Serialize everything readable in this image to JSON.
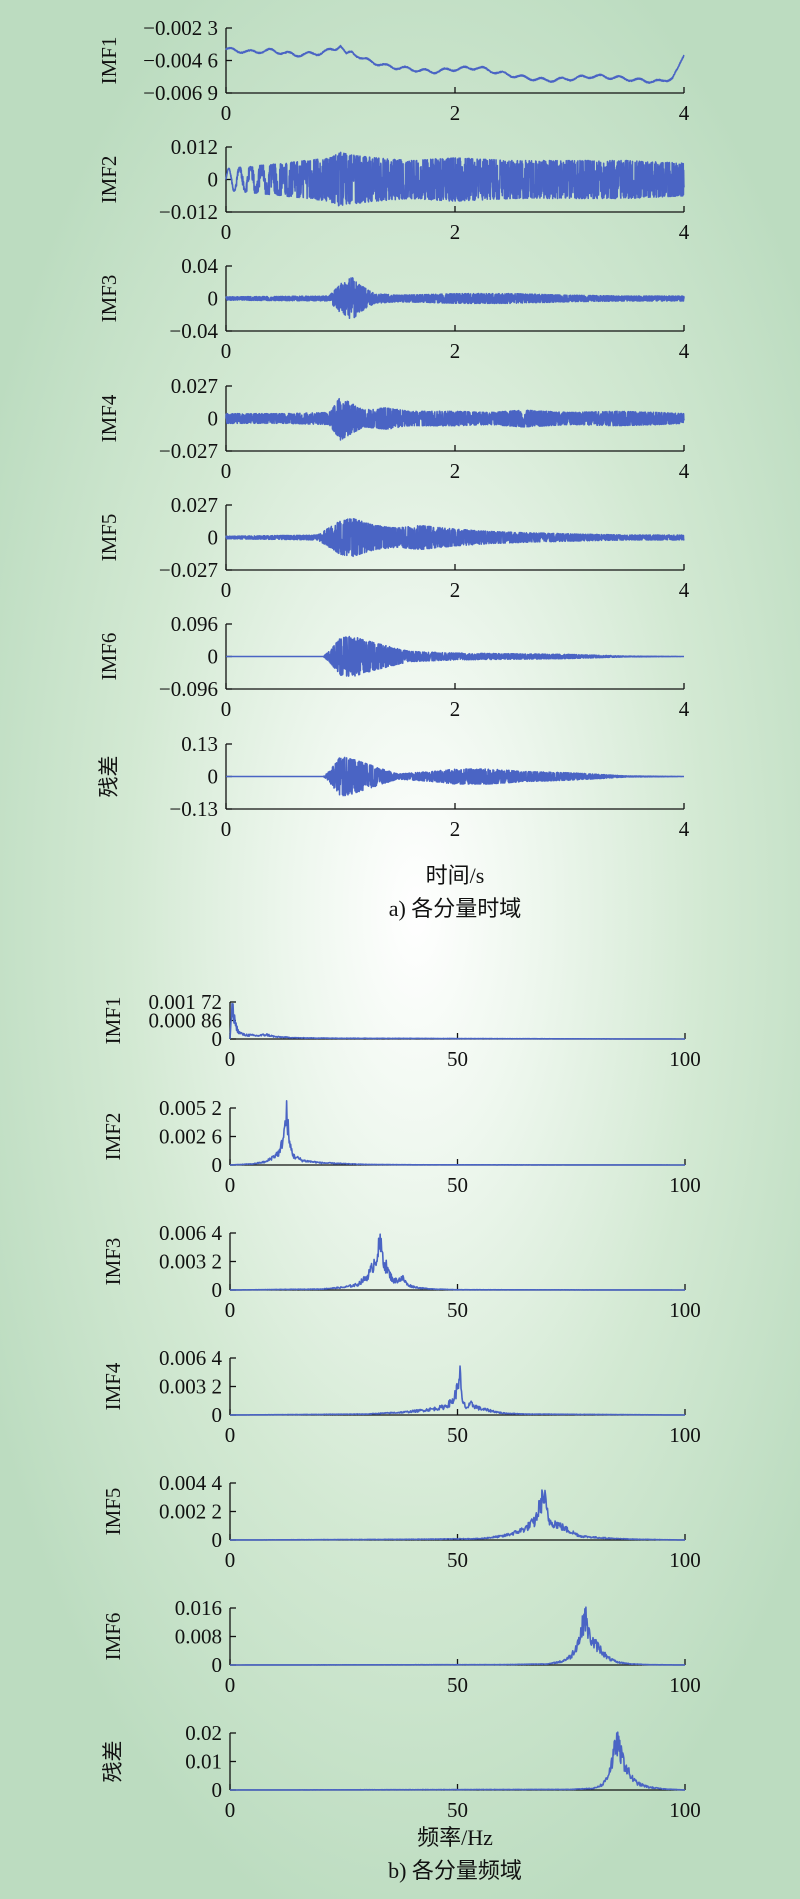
{
  "figure": {
    "time_caption": "a) 各分量时域",
    "time_xlabel": "时间/s",
    "freq_caption": "b) 各分量频域",
    "freq_xlabel": "频率/Hz",
    "line_color": "#4a64c4"
  },
  "chart_data": [
    {
      "type": "line",
      "ylabel": "IMF1",
      "xlim": [
        0,
        4
      ],
      "xticks": [
        "0",
        "2",
        "4"
      ],
      "ylim": [
        -0.0069,
        -0.0023
      ],
      "yticks": [
        {
          "v": -0.0023,
          "t": "−0.002 3"
        },
        {
          "v": -0.0046,
          "t": "−0.004 6"
        },
        {
          "v": -0.0069,
          "t": "−0.006 9"
        }
      ],
      "x": [
        0,
        0.2,
        0.4,
        0.6,
        0.8,
        0.95,
        1.0,
        1.05,
        1.1,
        1.2,
        1.4,
        1.6,
        1.8,
        2.0,
        2.2,
        2.4,
        2.6,
        2.8,
        3.0,
        3.2,
        3.4,
        3.6,
        3.8,
        3.9,
        3.95,
        4.0
      ],
      "values": [
        -0.0038,
        -0.004,
        -0.0039,
        -0.0042,
        -0.0041,
        -0.0038,
        -0.0035,
        -0.0042,
        -0.004,
        -0.0045,
        -0.005,
        -0.0052,
        -0.0054,
        -0.0052,
        -0.0051,
        -0.0055,
        -0.0058,
        -0.006,
        -0.0059,
        -0.0057,
        -0.0058,
        -0.006,
        -0.0061,
        -0.0058,
        -0.0052,
        -0.0042
      ]
    },
    {
      "type": "line",
      "ylabel": "IMF2",
      "xlim": [
        0,
        4
      ],
      "xticks": [
        "0",
        "2",
        "4"
      ],
      "ylim": [
        -0.012,
        0.012
      ],
      "yticks": [
        {
          "v": 0.012,
          "t": "0.012"
        },
        {
          "v": 0,
          "t": "0"
        },
        {
          "v": -0.012,
          "t": "−0.012"
        }
      ],
      "x": [
        0,
        0.5,
        0.9,
        1.0,
        1.1,
        1.3,
        1.6,
        2.0,
        2.5,
        3.0,
        3.5,
        4.0
      ],
      "values": [
        0.004,
        0.006,
        0.008,
        0.01,
        0.009,
        0.008,
        0.007,
        0.008,
        0.007,
        0.007,
        0.007,
        0.006
      ]
    },
    {
      "type": "line",
      "ylabel": "IMF3",
      "xlim": [
        0,
        4
      ],
      "xticks": [
        "0",
        "2",
        "4"
      ],
      "ylim": [
        -0.04,
        0.04
      ],
      "yticks": [
        {
          "v": 0.04,
          "t": "0.04"
        },
        {
          "v": 0,
          "t": "0"
        },
        {
          "v": -0.04,
          "t": "−0.04"
        }
      ],
      "x": [
        0,
        0.9,
        1.0,
        1.1,
        1.2,
        1.3,
        1.5,
        1.8,
        2.0,
        2.5,
        3.0,
        3.5,
        4.0
      ],
      "values": [
        0.002,
        0.003,
        0.018,
        0.026,
        0.014,
        0.006,
        0.004,
        0.005,
        0.006,
        0.006,
        0.004,
        0.003,
        0.003
      ]
    },
    {
      "type": "line",
      "ylabel": "IMF4",
      "xlim": [
        0,
        4
      ],
      "xticks": [
        "0",
        "2",
        "4"
      ],
      "ylim": [
        -0.027,
        0.027
      ],
      "yticks": [
        {
          "v": 0.027,
          "t": "0.027"
        },
        {
          "v": 0,
          "t": "0"
        },
        {
          "v": -0.027,
          "t": "−0.027"
        }
      ],
      "x": [
        0,
        0.5,
        0.9,
        1.0,
        1.05,
        1.2,
        1.4,
        1.6,
        2.0,
        2.3,
        2.6,
        3.0,
        3.4,
        3.8,
        4.0
      ],
      "values": [
        0.004,
        0.004,
        0.005,
        0.018,
        0.015,
        0.007,
        0.009,
        0.006,
        0.006,
        0.005,
        0.007,
        0.005,
        0.006,
        0.005,
        0.004
      ]
    },
    {
      "type": "line",
      "ylabel": "IMF5",
      "xlim": [
        0,
        4
      ],
      "xticks": [
        "0",
        "2",
        "4"
      ],
      "ylim": [
        -0.027,
        0.027
      ],
      "yticks": [
        {
          "v": 0.027,
          "t": "0.027"
        },
        {
          "v": 0,
          "t": "0"
        },
        {
          "v": -0.027,
          "t": "−0.027"
        }
      ],
      "x": [
        0,
        0.8,
        0.9,
        1.0,
        1.1,
        1.3,
        1.5,
        1.7,
        1.9,
        2.0,
        2.3,
        2.6,
        3.0,
        3.5,
        4.0
      ],
      "values": [
        0.001,
        0.002,
        0.008,
        0.014,
        0.016,
        0.01,
        0.008,
        0.01,
        0.008,
        0.007,
        0.005,
        0.004,
        0.003,
        0.002,
        0.002
      ]
    },
    {
      "type": "line",
      "ylabel": "IMF6",
      "xlim": [
        0,
        4
      ],
      "xticks": [
        "0",
        "2",
        "4"
      ],
      "ylim": [
        -0.096,
        0.096
      ],
      "yticks": [
        {
          "v": 0.096,
          "t": "0.096"
        },
        {
          "v": 0,
          "t": "0"
        },
        {
          "v": -0.096,
          "t": "−0.096"
        }
      ],
      "x": [
        0,
        0.85,
        0.9,
        1.0,
        1.1,
        1.3,
        1.6,
        2.0,
        2.5,
        3.0,
        3.5,
        4.0
      ],
      "values": [
        0,
        0,
        0.015,
        0.055,
        0.06,
        0.04,
        0.015,
        0.01,
        0.008,
        0.006,
        0.001,
        0
      ]
    },
    {
      "type": "line",
      "ylabel": "残差",
      "xlim": [
        0,
        4
      ],
      "xticks": [
        "0",
        "2",
        "4"
      ],
      "ylim": [
        -0.13,
        0.13
      ],
      "yticks": [
        {
          "v": 0.13,
          "t": "0.13"
        },
        {
          "v": 0,
          "t": "0"
        },
        {
          "v": -0.13,
          "t": "−0.13"
        }
      ],
      "x": [
        0,
        0.85,
        0.9,
        1.0,
        1.1,
        1.3,
        1.5,
        1.8,
        2.0,
        2.3,
        2.6,
        3.0,
        3.5,
        4.0
      ],
      "values": [
        0,
        0,
        0.02,
        0.08,
        0.07,
        0.04,
        0.01,
        0.02,
        0.03,
        0.03,
        0.02,
        0.015,
        0.002,
        0
      ]
    },
    {
      "type": "line",
      "ylabel": "IMF1",
      "xlim": [
        0,
        100
      ],
      "xticks": [
        "0",
        "50",
        "100"
      ],
      "ylim": [
        0,
        0.00172
      ],
      "yticks": [
        {
          "v": 0.00172,
          "t": "0.001 72"
        },
        {
          "v": 0.00086,
          "t": "0.000 86"
        },
        {
          "v": 0,
          "t": "0"
        }
      ],
      "x": [
        0,
        0.5,
        1,
        1.5,
        2,
        3,
        4,
        6,
        8,
        10,
        15,
        20,
        30,
        50,
        70,
        100
      ],
      "values": [
        0,
        0.0015,
        0.0009,
        0.0005,
        0.0003,
        0.0002,
        0.00018,
        0.00015,
        0.0002,
        0.0001,
        5e-05,
        4e-05,
        3e-05,
        2e-05,
        1e-05,
        0
      ]
    },
    {
      "type": "line",
      "ylabel": "IMF2",
      "xlim": [
        0,
        100
      ],
      "xticks": [
        "0",
        "50",
        "100"
      ],
      "ylim": [
        0,
        0.0052
      ],
      "yticks": [
        {
          "v": 0.0052,
          "t": "0.005 2"
        },
        {
          "v": 0.0026,
          "t": "0.002 6"
        },
        {
          "v": 0,
          "t": "0"
        }
      ],
      "x": [
        0,
        5,
        8,
        10,
        11,
        12,
        12.5,
        13,
        14,
        16,
        20,
        26,
        30,
        40,
        100
      ],
      "values": [
        0,
        0.0001,
        0.0003,
        0.0009,
        0.0012,
        0.0032,
        0.0048,
        0.002,
        0.0008,
        0.0004,
        0.0002,
        0.0001,
        5e-05,
        2e-05,
        0
      ]
    },
    {
      "type": "line",
      "ylabel": "IMF3",
      "xlim": [
        0,
        100
      ],
      "xticks": [
        "0",
        "50",
        "100"
      ],
      "ylim": [
        0,
        0.0064
      ],
      "yticks": [
        {
          "v": 0.0064,
          "t": "0.006 4"
        },
        {
          "v": 0.0032,
          "t": "0.003 2"
        },
        {
          "v": 0,
          "t": "0"
        }
      ],
      "x": [
        0,
        20,
        25,
        28,
        30,
        31,
        32,
        33,
        34,
        35,
        36,
        38,
        39,
        40,
        42,
        45,
        50,
        100
      ],
      "values": [
        0,
        0.0001,
        0.0003,
        0.0006,
        0.0014,
        0.0022,
        0.0035,
        0.005,
        0.003,
        0.0018,
        0.001,
        0.0013,
        0.0006,
        0.0004,
        0.0002,
        0.0001,
        3e-05,
        0
      ]
    },
    {
      "type": "line",
      "ylabel": "IMF4",
      "xlim": [
        0,
        100
      ],
      "xticks": [
        "0",
        "50",
        "100"
      ],
      "ylim": [
        0,
        0.0064
      ],
      "yticks": [
        {
          "v": 0.0064,
          "t": "0.006 4"
        },
        {
          "v": 0.0032,
          "t": "0.003 2"
        },
        {
          "v": 0,
          "t": "0"
        }
      ],
      "x": [
        0,
        30,
        38,
        42,
        45,
        47,
        48,
        49,
        50,
        50.5,
        51,
        52,
        53,
        55,
        57,
        60,
        65,
        100
      ],
      "values": [
        0,
        0.0001,
        0.0003,
        0.0005,
        0.0007,
        0.0009,
        0.0012,
        0.0016,
        0.003,
        0.005,
        0.0015,
        0.0008,
        0.0012,
        0.0007,
        0.0005,
        0.0002,
        0.0001,
        0
      ]
    },
    {
      "type": "line",
      "ylabel": "IMF5",
      "xlim": [
        0,
        100
      ],
      "xticks": [
        "0",
        "50",
        "100"
      ],
      "ylim": [
        0,
        0.0044
      ],
      "yticks": [
        {
          "v": 0.0044,
          "t": "0.004 4"
        },
        {
          "v": 0.0022,
          "t": "0.002 2"
        },
        {
          "v": 0,
          "t": "0"
        }
      ],
      "x": [
        0,
        40,
        55,
        60,
        63,
        65,
        66,
        67,
        68,
        69,
        70,
        72,
        74,
        77,
        80,
        85,
        90,
        100
      ],
      "values": [
        0,
        5e-05,
        0.0001,
        0.0003,
        0.0006,
        0.0009,
        0.0012,
        0.0014,
        0.0025,
        0.0035,
        0.0015,
        0.0012,
        0.0008,
        0.0003,
        0.0002,
        0.0001,
        5e-05,
        0
      ]
    },
    {
      "type": "line",
      "ylabel": "IMF6",
      "xlim": [
        0,
        100
      ],
      "xticks": [
        "0",
        "50",
        "100"
      ],
      "ylim": [
        0,
        0.016
      ],
      "yticks": [
        {
          "v": 0.016,
          "t": "0.016"
        },
        {
          "v": 0.008,
          "t": "0.008"
        },
        {
          "v": 0,
          "t": "0"
        }
      ],
      "x": [
        0,
        60,
        70,
        73,
        75,
        76,
        77,
        78,
        79,
        80,
        81,
        83,
        85,
        88,
        92,
        100
      ],
      "values": [
        0,
        0.0001,
        0.0003,
        0.001,
        0.0025,
        0.005,
        0.008,
        0.014,
        0.008,
        0.006,
        0.005,
        0.002,
        0.0008,
        0.0003,
        0.0001,
        0
      ]
    },
    {
      "type": "line",
      "ylabel": "残差",
      "xlim": [
        0,
        100
      ],
      "xticks": [
        "0",
        "50",
        "100"
      ],
      "ylim": [
        0,
        0.02
      ],
      "yticks": [
        {
          "v": 0.02,
          "t": "0.02"
        },
        {
          "v": 0.01,
          "t": "0.01"
        },
        {
          "v": 0,
          "t": "0"
        }
      ],
      "x": [
        0,
        75,
        80,
        82,
        83,
        84,
        85,
        86,
        87,
        88,
        89,
        90,
        92,
        95,
        100
      ],
      "values": [
        0,
        0.0002,
        0.0006,
        0.002,
        0.005,
        0.01,
        0.017,
        0.012,
        0.008,
        0.005,
        0.003,
        0.002,
        0.001,
        0.0004,
        0
      ]
    }
  ]
}
